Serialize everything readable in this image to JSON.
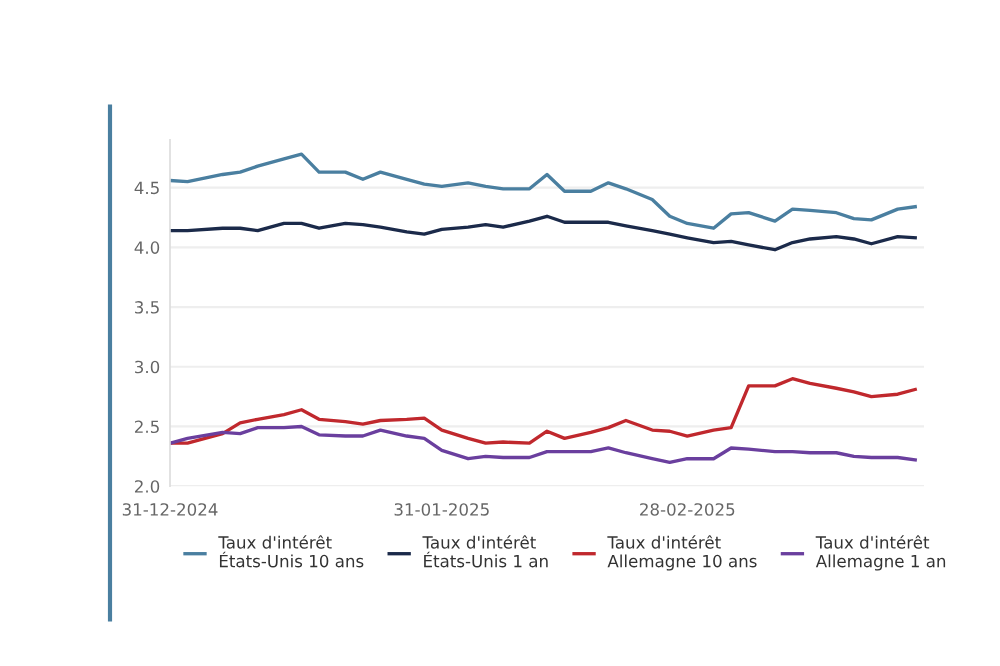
{
  "chart_data": {
    "type": "line",
    "x": [
      "2024-12-31",
      "2025-01-02",
      "2025-01-06",
      "2025-01-08",
      "2025-01-10",
      "2025-01-13",
      "2025-01-15",
      "2025-01-17",
      "2025-01-20",
      "2025-01-22",
      "2025-01-24",
      "2025-01-27",
      "2025-01-29",
      "2025-01-31",
      "2025-02-03",
      "2025-02-05",
      "2025-02-07",
      "2025-02-10",
      "2025-02-12",
      "2025-02-14",
      "2025-02-17",
      "2025-02-19",
      "2025-02-21",
      "2025-02-24",
      "2025-02-26",
      "2025-02-28",
      "2025-03-03",
      "2025-03-05",
      "2025-03-07",
      "2025-03-10",
      "2025-03-12",
      "2025-03-14",
      "2025-03-17",
      "2025-03-19",
      "2025-03-21",
      "2025-03-24",
      "2025-03-26"
    ],
    "series": [
      {
        "name": "Taux d'intérêt\nÉtats-Unis 10 ans",
        "color": "#4a7fa0",
        "values": [
          4.56,
          4.55,
          4.61,
          4.63,
          4.68,
          4.74,
          4.78,
          4.63,
          4.63,
          4.57,
          4.63,
          4.57,
          4.53,
          4.51,
          4.54,
          4.51,
          4.49,
          4.49,
          4.61,
          4.47,
          4.47,
          4.54,
          4.49,
          4.4,
          4.26,
          4.2,
          4.16,
          4.28,
          4.29,
          4.22,
          4.32,
          4.31,
          4.29,
          4.24,
          4.23,
          4.32,
          4.34
        ]
      },
      {
        "name": "Taux d'intérêt\nÉtats-Unis 1 an",
        "color": "#1b2a4a",
        "values": [
          4.14,
          4.14,
          4.16,
          4.16,
          4.14,
          4.2,
          4.2,
          4.16,
          4.2,
          4.19,
          4.17,
          4.13,
          4.11,
          4.15,
          4.17,
          4.19,
          4.17,
          4.22,
          4.26,
          4.21,
          4.21,
          4.21,
          4.18,
          4.14,
          4.11,
          4.08,
          4.04,
          4.05,
          4.02,
          3.98,
          4.04,
          4.07,
          4.09,
          4.07,
          4.03,
          4.09,
          4.08
        ]
      },
      {
        "name": "Taux d'intérêt\nAllemagne 10 ans",
        "color": "#c0282d",
        "values": [
          2.36,
          2.36,
          2.44,
          2.53,
          2.56,
          2.6,
          2.64,
          2.56,
          2.54,
          2.52,
          2.55,
          2.56,
          2.57,
          2.47,
          2.4,
          2.36,
          2.37,
          2.36,
          2.46,
          2.4,
          2.45,
          2.49,
          2.55,
          2.47,
          2.46,
          2.42,
          2.47,
          2.49,
          2.84,
          2.84,
          2.9,
          2.86,
          2.82,
          2.79,
          2.75,
          2.77,
          2.81
        ]
      },
      {
        "name": "Taux d'intérêt\nAllemagne 1 an",
        "color": "#6a3f9e",
        "values": [
          2.36,
          2.4,
          2.45,
          2.44,
          2.49,
          2.49,
          2.5,
          2.43,
          2.42,
          2.42,
          2.47,
          2.42,
          2.4,
          2.3,
          2.23,
          2.25,
          2.24,
          2.24,
          2.29,
          2.29,
          2.29,
          2.32,
          2.28,
          2.23,
          2.2,
          2.23,
          2.23,
          2.32,
          2.31,
          2.29,
          2.29,
          2.28,
          2.28,
          2.25,
          2.24,
          2.24,
          2.22
        ]
      }
    ],
    "xlim": [
      "2024-12-31",
      "2025-03-27"
    ],
    "xticks": [
      {
        "value": "2024-12-31",
        "label": "31-12-2024"
      },
      {
        "value": "2025-01-31",
        "label": "31-01-2025"
      },
      {
        "value": "2025-02-28",
        "label": "28-02-2025"
      }
    ],
    "ylim": [
      2.0,
      4.9
    ],
    "yticks": [
      {
        "value": 2.0,
        "label": "2.0"
      },
      {
        "value": 2.5,
        "label": "2.5"
      },
      {
        "value": 3.0,
        "label": "3.0"
      },
      {
        "value": 3.5,
        "label": "3.5"
      },
      {
        "value": 4.0,
        "label": "4.0"
      },
      {
        "value": 4.5,
        "label": "4.5"
      }
    ],
    "grid": "y",
    "legend": "bottom",
    "marker": "none",
    "line_style": "solid"
  }
}
